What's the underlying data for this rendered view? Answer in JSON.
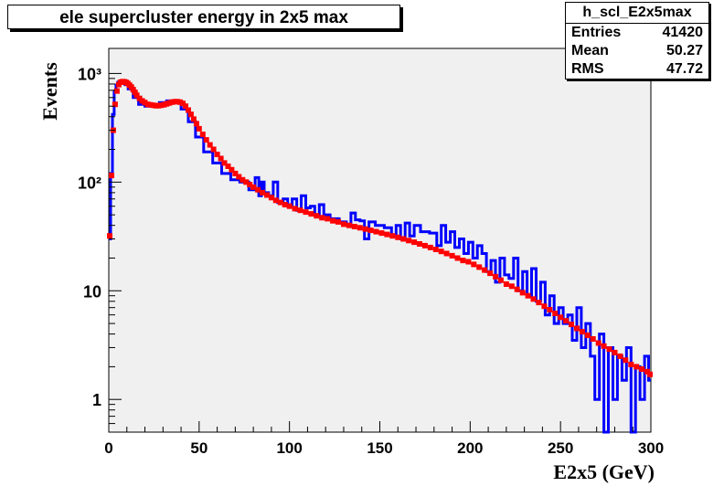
{
  "title": "ele supercluster energy in 2x5 max",
  "stats": {
    "name": "h_scl_E2x5max",
    "rows": [
      {
        "label": "Entries",
        "value": "41420"
      },
      {
        "label": "Mean",
        "value": "50.27"
      },
      {
        "label": "RMS",
        "value": "47.72"
      }
    ]
  },
  "colors": {
    "series_a": "#0000ff",
    "series_b": "#ff0000",
    "frame_fill": "#f0f0f0"
  },
  "chart_data": {
    "type": "line",
    "xlabel": "E2x5 (GeV)",
    "ylabel": "Events",
    "xlim": [
      0,
      300
    ],
    "ylim": [
      0.5,
      1700
    ],
    "yscale": "log",
    "x_ticks": [
      0,
      50,
      100,
      150,
      200,
      250,
      300
    ],
    "x_tick_labels": [
      "0",
      "50",
      "100",
      "150",
      "200",
      "250",
      "300"
    ],
    "y_ticks": [
      1,
      10,
      100,
      1000
    ],
    "y_tick_labels": [
      "1",
      "10",
      "10²",
      "10³"
    ],
    "grid": false,
    "series": [
      {
        "style": "histogram",
        "color": "#0000ff",
        "x": [
          0.5,
          1.5,
          2.5,
          3.5,
          4.5,
          5.5,
          6.5,
          7.5,
          8.5,
          9.5,
          12,
          15,
          18,
          22,
          26,
          30,
          34,
          38,
          42,
          46,
          50,
          55,
          60,
          65,
          70,
          75,
          80,
          82,
          84,
          85,
          87,
          90,
          92,
          95,
          98,
          100,
          103,
          105,
          108,
          110,
          113,
          115,
          118,
          120,
          125,
          130,
          133,
          135,
          138,
          140,
          143,
          145,
          150,
          155,
          158,
          160,
          163,
          165,
          168,
          170,
          175,
          180,
          183,
          185,
          188,
          190,
          193,
          195,
          198,
          200,
          203,
          205,
          208,
          210,
          213,
          215,
          218,
          220,
          223,
          225,
          228,
          230,
          233,
          235,
          238,
          240,
          243,
          245,
          248,
          250,
          253,
          255,
          258,
          260,
          263,
          265,
          268,
          270,
          273,
          275,
          278,
          280,
          283,
          285,
          288,
          290,
          293,
          295,
          298,
          299.5
        ],
        "y": [
          30,
          120,
          420,
          680,
          780,
          830,
          850,
          840,
          820,
          790,
          720,
          600,
          520,
          500,
          510,
          540,
          560,
          540,
          470,
          360,
          260,
          190,
          150,
          120,
          105,
          100,
          85,
          110,
          75,
          100,
          80,
          75,
          100,
          65,
          70,
          62,
          70,
          55,
          75,
          58,
          60,
          50,
          62,
          50,
          46,
          43,
          40,
          52,
          45,
          44,
          30,
          43,
          40,
          38,
          32,
          40,
          30,
          42,
          32,
          40,
          35,
          34,
          26,
          40,
          28,
          35,
          25,
          30,
          22,
          28,
          20,
          26,
          22,
          15,
          19,
          12,
          20,
          14,
          13,
          20,
          10,
          15,
          9,
          16,
          8,
          12,
          6,
          9,
          5,
          7,
          5,
          6,
          3.5,
          7,
          3,
          5,
          2.5,
          1,
          4,
          0.5,
          3,
          1,
          2.5,
          1.5,
          3,
          0.5,
          2,
          1,
          2.5,
          1.5
        ]
      },
      {
        "style": "markers",
        "color": "#ff0000",
        "x": [
          0.5,
          1.5,
          2.5,
          3.5,
          4.5,
          5.5,
          6.5,
          7.5,
          8.5,
          9.5,
          10.5,
          11.5,
          12.5,
          13.5,
          14.5,
          15.5,
          17,
          18.5,
          20,
          21.5,
          23,
          24.5,
          26,
          27.5,
          29,
          30.5,
          32,
          33.5,
          35,
          36.5,
          38,
          39.5,
          41,
          42.5,
          44,
          45.5,
          47,
          48.5,
          50,
          52,
          54,
          56,
          58,
          60,
          62,
          64,
          66,
          68,
          70,
          72,
          74,
          76,
          78,
          80,
          82.5,
          85,
          87.5,
          90,
          92.5,
          95,
          97.5,
          100,
          103,
          106,
          109,
          112,
          115,
          118,
          121,
          124,
          127,
          130,
          133,
          136,
          139,
          142,
          145,
          148,
          151,
          154,
          157,
          160,
          163,
          166,
          169,
          172,
          175,
          178,
          181,
          184,
          187,
          190,
          193,
          196,
          199,
          202,
          205,
          208,
          211,
          214,
          217,
          220,
          223,
          226,
          229,
          232,
          235,
          238,
          241,
          244,
          247,
          250,
          253,
          256,
          259,
          262,
          265,
          268,
          271,
          274,
          277,
          280,
          283,
          286,
          289,
          292,
          295,
          298,
          299.5
        ],
        "y": [
          32,
          115,
          300,
          520,
          690,
          790,
          830,
          840,
          840,
          830,
          810,
          780,
          750,
          710,
          670,
          630,
          590,
          560,
          540,
          520,
          515,
          510,
          505,
          505,
          510,
          515,
          525,
          535,
          545,
          550,
          550,
          545,
          530,
          500,
          460,
          420,
          380,
          345,
          310,
          275,
          245,
          220,
          200,
          180,
          165,
          150,
          140,
          130,
          120,
          112,
          105,
          100,
          95,
          90,
          85,
          80,
          76,
          72,
          68,
          65,
          62,
          60,
          57,
          55,
          53,
          51,
          49,
          47,
          46,
          44,
          43,
          41,
          40,
          39,
          38,
          37,
          36,
          35,
          34,
          33,
          32,
          31,
          30,
          29,
          28,
          27,
          26,
          25,
          24,
          23,
          22,
          21,
          20,
          19,
          18.5,
          17.5,
          16.5,
          15.5,
          14.5,
          13.5,
          12.5,
          11.5,
          11,
          10.3,
          9.6,
          9,
          8.4,
          7.8,
          7.2,
          6.7,
          6.2,
          5.7,
          5.3,
          4.9,
          4.5,
          4.2,
          3.9,
          3.6,
          3.3,
          3.1,
          2.9,
          2.7,
          2.5,
          2.3,
          2.1,
          2,
          1.9,
          1.8,
          1.7
        ]
      }
    ]
  }
}
